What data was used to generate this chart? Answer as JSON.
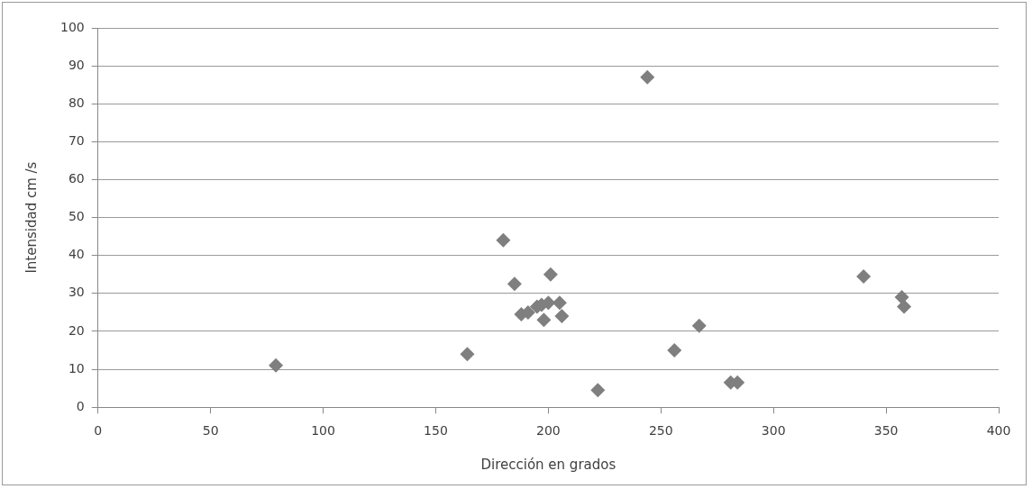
{
  "chart_data": {
    "type": "scatter",
    "xlabel": "Dirección en grados",
    "ylabel": "Intensidad cm /s",
    "x": [
      79,
      164,
      180,
      185,
      188,
      191,
      195,
      197,
      198,
      200,
      201,
      205,
      206,
      222,
      244,
      256,
      267,
      281,
      284,
      340,
      357,
      358
    ],
    "series": [
      {
        "color": "#7f7f7f",
        "values": [
          11,
          14,
          44,
          32.5,
          24.5,
          25,
          26.5,
          27,
          23,
          27.5,
          35,
          27.5,
          24,
          4.5,
          87,
          15,
          21.5,
          6.5,
          6.5,
          34.5,
          29,
          26.5
        ]
      }
    ],
    "xlim": [
      0,
      400
    ],
    "xticks": [
      0,
      50,
      100,
      150,
      200,
      250,
      300,
      350,
      400
    ],
    "ylim": [
      0,
      100
    ],
    "yticks": [
      0,
      10,
      20,
      30,
      40,
      50,
      60,
      70,
      80,
      90,
      100
    ],
    "grid": "y",
    "marker": "diamond",
    "legend": false
  }
}
